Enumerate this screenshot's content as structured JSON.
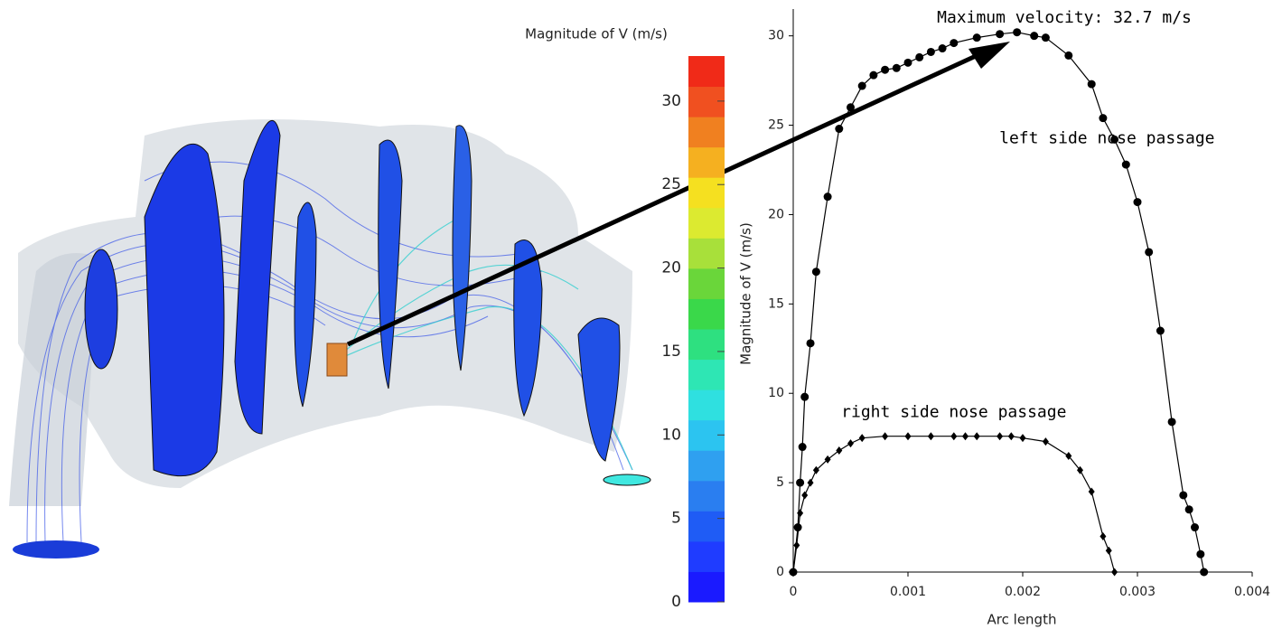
{
  "chart_data": [
    {
      "type": "colorbar",
      "title": "Magnitude of V (m/s)",
      "ylim": [
        0,
        32.7
      ],
      "yticks": [
        0,
        5,
        10,
        15,
        20,
        25,
        30
      ],
      "colors": [
        "#1a1aff",
        "#1f3cff",
        "#1f5cf5",
        "#2a7ef0",
        "#2fa0f0",
        "#2cc4f0",
        "#2fe0e0",
        "#2ee6b4",
        "#2ee080",
        "#3ad84a",
        "#6ad63a",
        "#a8e03a",
        "#dcea30",
        "#f5e020",
        "#f5b020",
        "#f08020",
        "#f05020",
        "#f02a18"
      ]
    },
    {
      "type": "line",
      "ylabel": "Magnitude of V (m/s)",
      "xlabel": "Arc length",
      "annotation": "Maximum velocity: 32.7 m/s",
      "xlim": [
        0,
        0.004
      ],
      "ylim": [
        0,
        31.5
      ],
      "xticks": [
        0,
        0.001,
        0.002,
        0.003,
        0.004
      ],
      "yticks": [
        0,
        5,
        10,
        15,
        20,
        25,
        30
      ],
      "color": "#000000",
      "series": [
        {
          "name": "left side nose passage",
          "marker": "circle",
          "x": [
            0,
            4e-05,
            6e-05,
            8e-05,
            0.0001,
            0.00015,
            0.0002,
            0.0003,
            0.0004,
            0.0005,
            0.0006,
            0.0007,
            0.0008,
            0.0009,
            0.001,
            0.0011,
            0.0012,
            0.0013,
            0.0014,
            0.0016,
            0.0018,
            0.00195,
            0.0021,
            0.0022,
            0.0024,
            0.0026,
            0.0027,
            0.0028,
            0.0029,
            0.003,
            0.0031,
            0.0032,
            0.0033,
            0.0034,
            0.00345,
            0.0035,
            0.00355,
            0.00358
          ],
          "values": [
            0,
            2.5,
            5,
            7,
            9.8,
            12.8,
            16.8,
            21,
            24.8,
            26,
            27.2,
            27.8,
            28.1,
            28.2,
            28.5,
            28.8,
            29.1,
            29.3,
            29.6,
            29.9,
            30.1,
            30.2,
            30.0,
            29.9,
            28.9,
            27.3,
            25.4,
            24.2,
            22.8,
            20.7,
            17.9,
            13.5,
            8.4,
            4.3,
            3.5,
            2.5,
            1.0,
            0
          ]
        },
        {
          "name": "right side nose passage",
          "marker": "diamond",
          "x": [
            0,
            3e-05,
            6e-05,
            0.0001,
            0.00015,
            0.0002,
            0.0003,
            0.0004,
            0.0005,
            0.0006,
            0.0008,
            0.001,
            0.0012,
            0.0014,
            0.0015,
            0.0016,
            0.0018,
            0.0019,
            0.002,
            0.0022,
            0.0024,
            0.0025,
            0.0026,
            0.0027,
            0.00275,
            0.0028
          ],
          "values": [
            0,
            1.5,
            3.3,
            4.3,
            5.0,
            5.7,
            6.3,
            6.8,
            7.2,
            7.5,
            7.6,
            7.6,
            7.6,
            7.6,
            7.6,
            7.6,
            7.6,
            7.6,
            7.5,
            7.3,
            6.5,
            5.7,
            4.5,
            2.0,
            1.2,
            0
          ]
        }
      ]
    }
  ]
}
